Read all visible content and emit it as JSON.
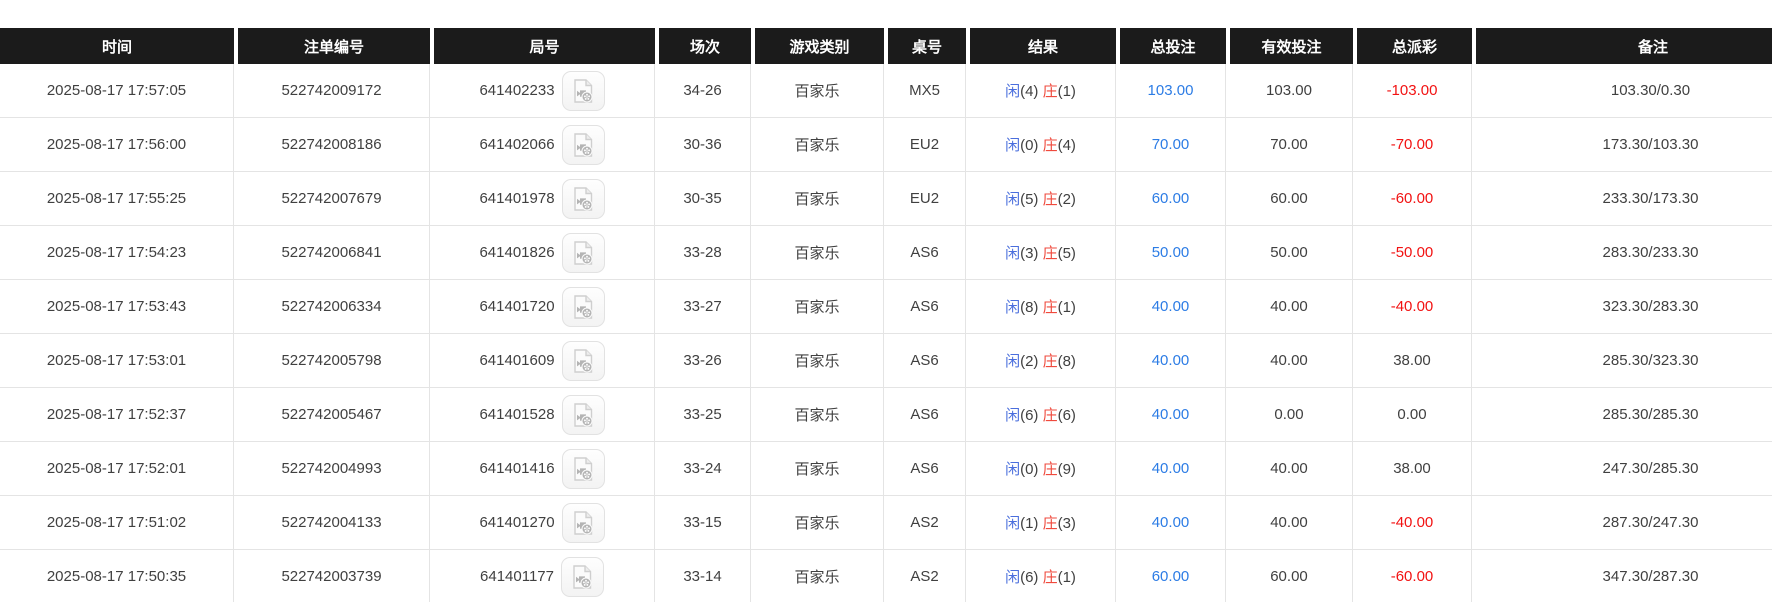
{
  "table": {
    "columns": [
      {
        "key": "time",
        "label": "时间"
      },
      {
        "key": "bet_no",
        "label": "注单编号"
      },
      {
        "key": "round_no",
        "label": "局号"
      },
      {
        "key": "session",
        "label": "场次"
      },
      {
        "key": "game_type",
        "label": "游戏类别"
      },
      {
        "key": "table_no",
        "label": "桌号"
      },
      {
        "key": "result",
        "label": "结果"
      },
      {
        "key": "total_bet",
        "label": "总投注"
      },
      {
        "key": "valid_bet",
        "label": "有效投注"
      },
      {
        "key": "payout",
        "label": "总派彩"
      },
      {
        "key": "remark",
        "label": "备注"
      }
    ],
    "rows": [
      {
        "time": "2025-08-17 17:57:05",
        "bet_no": "522742009172",
        "round_no": "641402233",
        "session": "34-26",
        "game_type": "百家乐",
        "table_no": "MX5",
        "result": {
          "player_label": "闲",
          "player_num": "(4)",
          "banker_label": "庄",
          "banker_num": "(1)"
        },
        "total_bet": "103.00",
        "valid_bet": "103.00",
        "payout": "-103.00",
        "remark": "103.30/0.30"
      },
      {
        "time": "2025-08-17 17:56:00",
        "bet_no": "522742008186",
        "round_no": "641402066",
        "session": "30-36",
        "game_type": "百家乐",
        "table_no": "EU2",
        "result": {
          "player_label": "闲",
          "player_num": "(0)",
          "banker_label": "庄",
          "banker_num": "(4)"
        },
        "total_bet": "70.00",
        "valid_bet": "70.00",
        "payout": "-70.00",
        "remark": "173.30/103.30"
      },
      {
        "time": "2025-08-17 17:55:25",
        "bet_no": "522742007679",
        "round_no": "641401978",
        "session": "30-35",
        "game_type": "百家乐",
        "table_no": "EU2",
        "result": {
          "player_label": "闲",
          "player_num": "(5)",
          "banker_label": "庄",
          "banker_num": "(2)"
        },
        "total_bet": "60.00",
        "valid_bet": "60.00",
        "payout": "-60.00",
        "remark": "233.30/173.30"
      },
      {
        "time": "2025-08-17 17:54:23",
        "bet_no": "522742006841",
        "round_no": "641401826",
        "session": "33-28",
        "game_type": "百家乐",
        "table_no": "AS6",
        "result": {
          "player_label": "闲",
          "player_num": "(3)",
          "banker_label": "庄",
          "banker_num": "(5)"
        },
        "total_bet": "50.00",
        "valid_bet": "50.00",
        "payout": "-50.00",
        "remark": "283.30/233.30"
      },
      {
        "time": "2025-08-17 17:53:43",
        "bet_no": "522742006334",
        "round_no": "641401720",
        "session": "33-27",
        "game_type": "百家乐",
        "table_no": "AS6",
        "result": {
          "player_label": "闲",
          "player_num": "(8)",
          "banker_label": "庄",
          "banker_num": "(1)"
        },
        "total_bet": "40.00",
        "valid_bet": "40.00",
        "payout": "-40.00",
        "remark": "323.30/283.30"
      },
      {
        "time": "2025-08-17 17:53:01",
        "bet_no": "522742005798",
        "round_no": "641401609",
        "session": "33-26",
        "game_type": "百家乐",
        "table_no": "AS6",
        "result": {
          "player_label": "闲",
          "player_num": "(2)",
          "banker_label": "庄",
          "banker_num": "(8)"
        },
        "total_bet": "40.00",
        "valid_bet": "40.00",
        "payout": "38.00",
        "remark": "285.30/323.30"
      },
      {
        "time": "2025-08-17 17:52:37",
        "bet_no": "522742005467",
        "round_no": "641401528",
        "session": "33-25",
        "game_type": "百家乐",
        "table_no": "AS6",
        "result": {
          "player_label": "闲",
          "player_num": "(6)",
          "banker_label": "庄",
          "banker_num": "(6)"
        },
        "total_bet": "40.00",
        "valid_bet": "0.00",
        "payout": "0.00",
        "remark": "285.30/285.30"
      },
      {
        "time": "2025-08-17 17:52:01",
        "bet_no": "522742004993",
        "round_no": "641401416",
        "session": "33-24",
        "game_type": "百家乐",
        "table_no": "AS6",
        "result": {
          "player_label": "闲",
          "player_num": "(0)",
          "banker_label": "庄",
          "banker_num": "(9)"
        },
        "total_bet": "40.00",
        "valid_bet": "40.00",
        "payout": "38.00",
        "remark": "247.30/285.30"
      },
      {
        "time": "2025-08-17 17:51:02",
        "bet_no": "522742004133",
        "round_no": "641401270",
        "session": "33-15",
        "game_type": "百家乐",
        "table_no": "AS2",
        "result": {
          "player_label": "闲",
          "player_num": "(1)",
          "banker_label": "庄",
          "banker_num": "(3)"
        },
        "total_bet": "40.00",
        "valid_bet": "40.00",
        "payout": "-40.00",
        "remark": "287.30/247.30"
      },
      {
        "time": "2025-08-17 17:50:35",
        "bet_no": "522742003739",
        "round_no": "641401177",
        "session": "33-14",
        "game_type": "百家乐",
        "table_no": "AS2",
        "result": {
          "player_label": "闲",
          "player_num": "(6)",
          "banker_label": "庄",
          "banker_num": "(1)"
        },
        "total_bet": "60.00",
        "valid_bet": "60.00",
        "payout": "-60.00",
        "remark": "347.30/287.30"
      }
    ]
  },
  "icons": {
    "video_replay": "video-file-icon"
  },
  "colors": {
    "header_bg": "#1b1b1b",
    "header_text": "#ffffff",
    "body_text": "#404040",
    "bet_blue": "#2c7ce5",
    "negative_red": "#f21212",
    "player_blue": "#4a6edd",
    "banker_red": "#ef4a3d",
    "row_border": "#e4e4e4"
  }
}
